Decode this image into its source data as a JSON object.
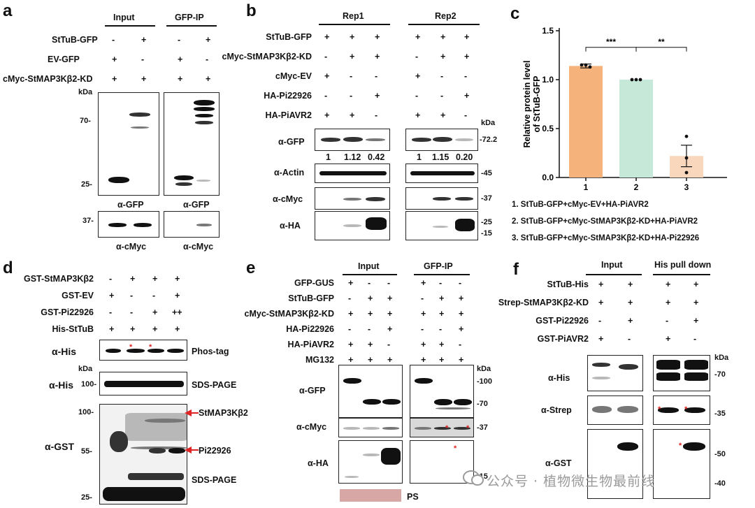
{
  "panels": {
    "a": {
      "letter": "a",
      "input": "Input",
      "ip": "GFP-IP",
      "rows": [
        {
          "label": "StTuB-GFP",
          "signs": [
            "-",
            "+",
            "-",
            "+"
          ]
        },
        {
          "label": "EV-GFP",
          "signs": [
            "+",
            "-",
            "+",
            "-"
          ]
        },
        {
          "label": "cMyc-StMAP3Kβ2-KD",
          "signs": [
            "+",
            "+",
            "+",
            "+"
          ]
        }
      ],
      "kda": "kDa",
      "mw": [
        "70-",
        "25-",
        "37-"
      ],
      "antibodies": [
        "α-GFP",
        "α-GFP",
        "α-cMyc",
        "α-cMyc"
      ]
    },
    "b": {
      "letter": "b",
      "rep1": "Rep1",
      "rep2": "Rep2",
      "rows": [
        {
          "label": "StTuB-GFP",
          "signs": [
            "+",
            "+",
            "+",
            "+",
            "+",
            "+"
          ]
        },
        {
          "label": "cMyc-StMAP3Kβ2-KD",
          "signs": [
            "-",
            "+",
            "+",
            "-",
            "+",
            "+"
          ]
        },
        {
          "label": "cMyc-EV",
          "signs": [
            "+",
            "-",
            "-",
            "+",
            "-",
            "-"
          ]
        },
        {
          "label": "HA-Pi22926",
          "signs": [
            "-",
            "-",
            "+",
            "-",
            "-",
            "+"
          ]
        },
        {
          "label": "HA-PiAVR2",
          "signs": [
            "+",
            "+",
            "-",
            "+",
            "+",
            "-"
          ]
        }
      ],
      "kda": "kDa",
      "antibodies": [
        "α-GFP",
        "α-Actin",
        "α-cMyc",
        "α-HA"
      ],
      "quant": [
        "1",
        "1.12",
        "0.42",
        "1",
        "1.15",
        "0.20"
      ],
      "mw": [
        "-72.2",
        "-45",
        "-37",
        "-25",
        "-15"
      ]
    },
    "c": {
      "letter": "c",
      "ylabel_line1": "Relative protein level",
      "ylabel_line2": "of StTuB-GFP",
      "legend": [
        "1. StTuB-GFP+cMyc-EV+HA-PiAVR2",
        "2. StTuB-GFP+cMyc-StMAP3Kβ2-KD+HA-PiAVR2",
        "3. StTuB-GFP+cMyc-StMAP3Kβ2-KD+HA-Pi22926"
      ],
      "sig1": "***",
      "sig2": "**"
    },
    "d": {
      "letter": "d",
      "rows": [
        {
          "label": "GST-StMAP3Kβ2",
          "signs": [
            "-",
            "+",
            "+",
            "+"
          ]
        },
        {
          "label": "GST-EV",
          "signs": [
            "+",
            "-",
            "-",
            "+"
          ]
        },
        {
          "label": "GST-Pi22926",
          "signs": [
            "-",
            "-",
            "+",
            "++"
          ]
        },
        {
          "label": "His-StTuB",
          "signs": [
            "+",
            "+",
            "+",
            "+"
          ]
        }
      ],
      "antibodies": [
        "α-His",
        "α-His",
        "α-GST"
      ],
      "kda": "kDa",
      "mw": [
        "100-",
        "100-",
        "55-",
        "25-"
      ],
      "notes": [
        "Phos-tag",
        "SDS-PAGE",
        "SDS-PAGE"
      ],
      "arrows": [
        "StMAP3Kβ2",
        "Pi22926"
      ]
    },
    "e": {
      "letter": "e",
      "input": "Input",
      "ip": "GFP-IP",
      "rows": [
        {
          "label": "GFP-GUS",
          "signs": [
            "+",
            "-",
            "-",
            "+",
            "-",
            "-"
          ]
        },
        {
          "label": "StTuB-GFP",
          "signs": [
            "-",
            "+",
            "+",
            "-",
            "+",
            "+"
          ]
        },
        {
          "label": "cMyc-StMAP3Kβ2-KD",
          "signs": [
            "+",
            "+",
            "+",
            "+",
            "+",
            "+"
          ]
        },
        {
          "label": "HA-Pi22926",
          "signs": [
            "-",
            "-",
            "+",
            "-",
            "-",
            "+"
          ]
        },
        {
          "label": "HA-PiAVR2",
          "signs": [
            "+",
            "+",
            "-",
            "+",
            "+",
            "-"
          ]
        },
        {
          "label": "MG132",
          "signs": [
            "+",
            "+",
            "+",
            "+",
            "+",
            "+"
          ]
        }
      ],
      "antibodies": [
        "α-GFP",
        "α-cMyc",
        "α-HA"
      ],
      "kda": "kDa",
      "mw": [
        "-100",
        "-70",
        "-37",
        "-15"
      ],
      "ps": "PS"
    },
    "f": {
      "letter": "f",
      "input": "Input",
      "pull": "His pull down",
      "rows": [
        {
          "label": "StTuB-His",
          "signs": [
            "+",
            "+",
            "+",
            "+"
          ]
        },
        {
          "label": "Strep-StMAP3Kβ2-KD",
          "signs": [
            "+",
            "+",
            "+",
            "+"
          ]
        },
        {
          "label": "GST-Pi22926",
          "signs": [
            "-",
            "+",
            "-",
            "+"
          ]
        },
        {
          "label": "GST-PiAVR2",
          "signs": [
            "+",
            "-",
            "+",
            "-"
          ]
        }
      ],
      "antibodies": [
        "α-His",
        "α-Strep",
        "α-GST"
      ],
      "kda": "kDa",
      "mw": [
        "-70",
        "-35",
        "-50",
        "-40"
      ]
    }
  },
  "chart_data": {
    "type": "bar",
    "categories": [
      "1",
      "2",
      "3"
    ],
    "values": [
      1.14,
      1.0,
      0.22
    ],
    "errors": [
      0.02,
      0.0,
      0.11
    ],
    "points": [
      [
        1.15,
        1.15,
        1.13
      ],
      [
        1.0,
        1.0,
        1.0
      ],
      [
        0.42,
        0.2,
        0.05
      ]
    ],
    "colors": [
      "#f5b27a",
      "#c5e8d8",
      "#f9d7bd"
    ],
    "yticks": [
      "0.0",
      "0.5",
      "1.0",
      "1.5"
    ],
    "ylim": [
      0,
      1.5
    ],
    "ylabel": "Relative protein level of StTuB-GFP",
    "xlabel": ""
  },
  "watermark": "公众号 · 植物微生物最前线"
}
